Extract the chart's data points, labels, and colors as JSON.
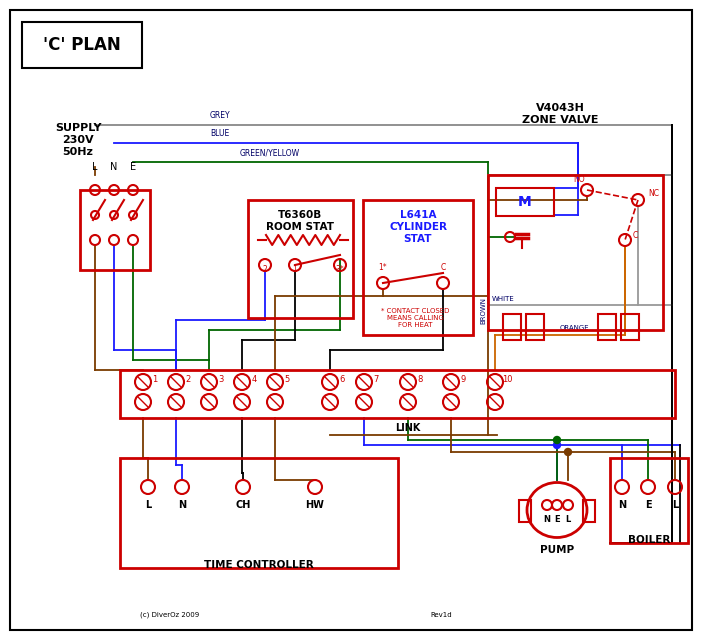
{
  "title": "'C' PLAN",
  "bg_color": "#ffffff",
  "red": "#cc0000",
  "blue": "#1a1aff",
  "green": "#006600",
  "grey": "#888888",
  "brown": "#7a3b00",
  "orange": "#cc6600",
  "black": "#000000",
  "navy": "#000066",
  "zone_valve_title1": "V4043H",
  "zone_valve_title2": "ZONE VALVE",
  "room_stat_label1": "T6360B",
  "room_stat_label2": "ROOM STAT",
  "cyl_stat_label1": "L641A",
  "cyl_stat_label2": "CYLINDER",
  "cyl_stat_label3": "STAT",
  "time_ctrl_label": "TIME CONTROLLER",
  "pump_label": "PUMP",
  "boiler_label": "BOILER",
  "supply_label1": "SUPPLY",
  "supply_label2": "230V",
  "supply_label3": "50Hz",
  "link_label": "LINK",
  "footnote": "* CONTACT CLOSED\nMEANS CALLING\nFOR HEAT",
  "copyright": "(c) DiverOz 2009",
  "rev": "Rev1d",
  "wire_grey_label": "GREY",
  "wire_blue_label": "BLUE",
  "wire_gy_label": "GREEN/YELLOW",
  "wire_brown_label": "BROWN",
  "wire_white_label": "WHITE",
  "wire_orange_label": "ORANGE",
  "lw": 1.3
}
